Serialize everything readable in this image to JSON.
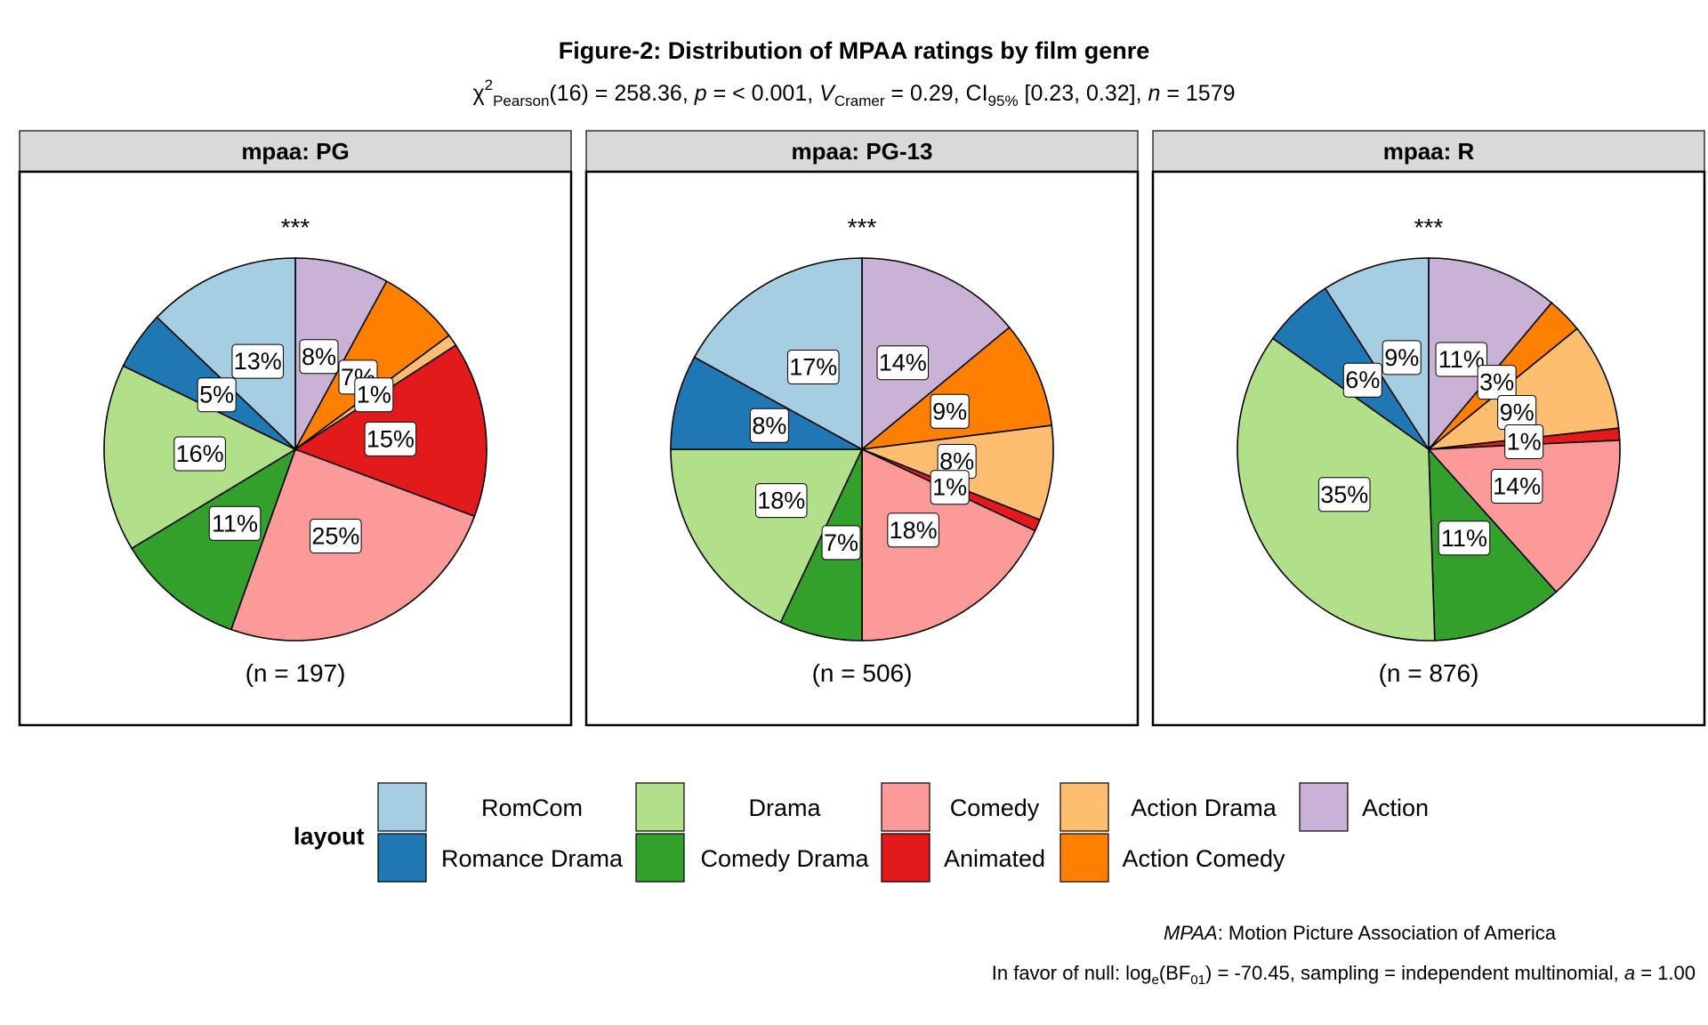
{
  "title": "Figure-2: Distribution of MPAA ratings by film genre",
  "subtitle": {
    "chi": "χ",
    "chi_sup": "2",
    "chi_sub": "Pearson",
    "df": "(16) = 258.36, ",
    "p_label": "p",
    "p_value": " = < 0.001, ",
    "v_label": "V",
    "v_sub": "Cramer",
    "v_value": " = 0.29, CI",
    "ci_sub": "95%",
    "ci_value": " [0.23, 0.32], ",
    "n_label": "n",
    "n_value": " = 1579"
  },
  "footer": {
    "line1_italic": "MPAA",
    "line1_rest": ": Motion Picture Association of America",
    "line2_a": "In favor of null: log",
    "line2_sub1": "e",
    "line2_b": "(BF",
    "line2_sub2": "01",
    "line2_c": ") = -70.45, sampling = independent multinomial, ",
    "line2_a_italic": "a",
    "line2_d": " = 1.00"
  },
  "legend": {
    "title": "layout",
    "entries": [
      {
        "label": "RomCom",
        "color": "#A6CEE3"
      },
      {
        "label": "Romance Drama",
        "color": "#1F78B4"
      },
      {
        "label": "Drama",
        "color": "#B2DF8A"
      },
      {
        "label": "Comedy Drama",
        "color": "#33A02C"
      },
      {
        "label": "Comedy",
        "color": "#FB9A99"
      },
      {
        "label": "Animated",
        "color": "#E31A1C"
      },
      {
        "label": "Action Drama",
        "color": "#FDBF6F"
      },
      {
        "label": "Action Comedy",
        "color": "#FF7F00"
      },
      {
        "label": "Action",
        "color": "#CAB2D6"
      }
    ]
  },
  "chart_data": {
    "type": "pie",
    "categories": [
      "Action",
      "Action Comedy",
      "Action Drama",
      "Animated",
      "Comedy",
      "Comedy Drama",
      "Drama",
      "Romance Drama",
      "RomCom"
    ],
    "panels": [
      {
        "strip": "mpaa: PG",
        "significance": "***",
        "n_label": "(n = 197)",
        "values": [
          8,
          7,
          1,
          15,
          25,
          11,
          16,
          5,
          13
        ],
        "labels": [
          "8%",
          "7%",
          "1%",
          "15%",
          "25%",
          "11%",
          "16%",
          "5%",
          "13%"
        ]
      },
      {
        "strip": "mpaa: PG-13",
        "significance": "***",
        "n_label": "(n = 506)",
        "values": [
          14,
          9,
          8,
          1,
          18,
          7,
          18,
          8,
          17
        ],
        "labels": [
          "14%",
          "9%",
          "8%",
          "1%",
          "18%",
          "7%",
          "18%",
          "8%",
          "17%"
        ]
      },
      {
        "strip": "mpaa: R",
        "significance": "***",
        "n_label": "(n = 876)",
        "values": [
          11,
          3,
          9,
          1,
          14,
          11,
          35,
          6,
          9
        ],
        "labels": [
          "11%",
          "3%",
          "9%",
          "1%",
          "14%",
          "11%",
          "35%",
          "6%",
          "9%"
        ]
      }
    ]
  }
}
